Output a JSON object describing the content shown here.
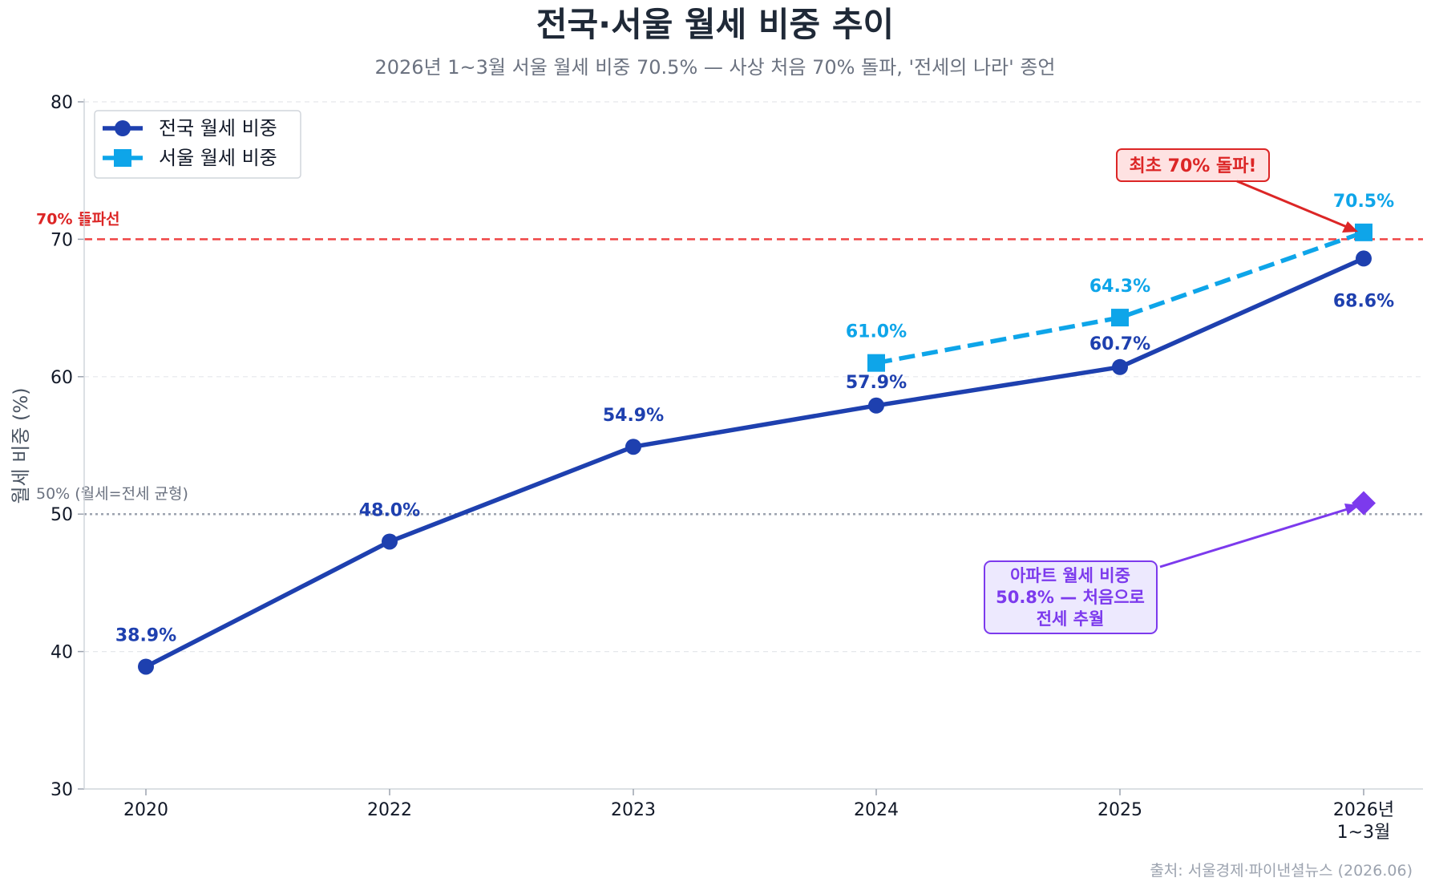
{
  "chart_data": {
    "type": "line",
    "title": "전국·서울 월세 비중 추이",
    "subtitle": "2026년 1~3월 서울 월세 비중 70.5% — 사상 처음 70% 돌파, '전세의 나라' 종언",
    "xlabel": "",
    "ylabel": "월세 비중 (%)",
    "ylim": [
      30,
      80
    ],
    "yticks": [
      "30",
      "40",
      "50",
      "60",
      "70",
      "80"
    ],
    "categories": [
      "2020",
      "2022",
      "2023",
      "2024",
      "2025",
      "2026년\n1~3월"
    ],
    "series": [
      {
        "name": "전국 월세 비중",
        "color": "#1e40af",
        "style": "solid-circle",
        "values": [
          38.9,
          48.0,
          54.9,
          57.9,
          60.7,
          68.6
        ],
        "labels": [
          "38.9%",
          "48.0%",
          "54.9%",
          "57.9%",
          "60.7%",
          "68.6%"
        ]
      },
      {
        "name": "서울 월세 비중",
        "color": "#0ea5e9",
        "style": "dashed-square",
        "values": [
          null,
          null,
          null,
          61.0,
          64.3,
          70.5
        ],
        "labels": [
          null,
          null,
          null,
          "61.0%",
          "64.3%",
          "70.5%"
        ]
      }
    ],
    "extra_point": {
      "category_index": 5,
      "value": 50.8,
      "color": "#7c3aed"
    },
    "reference_lines": [
      {
        "value": 70,
        "label": "70% 돌파선",
        "color": "#ef4444"
      },
      {
        "value": 50,
        "label": "50% (월세=전세 균형)",
        "color": "#9ca3af"
      }
    ],
    "annotations": [
      {
        "text": "최초 70% 돌파!",
        "color": "#dc2626"
      },
      {
        "text": "아파트 월세 비중\n50.8% — 처음으로\n전세 추월",
        "color": "#7c3aed"
      }
    ],
    "legend": "top-left",
    "grid": "horizontal-dashed",
    "source": "출처: 서울경제·파이낸셜뉴스 (2026.06)"
  }
}
